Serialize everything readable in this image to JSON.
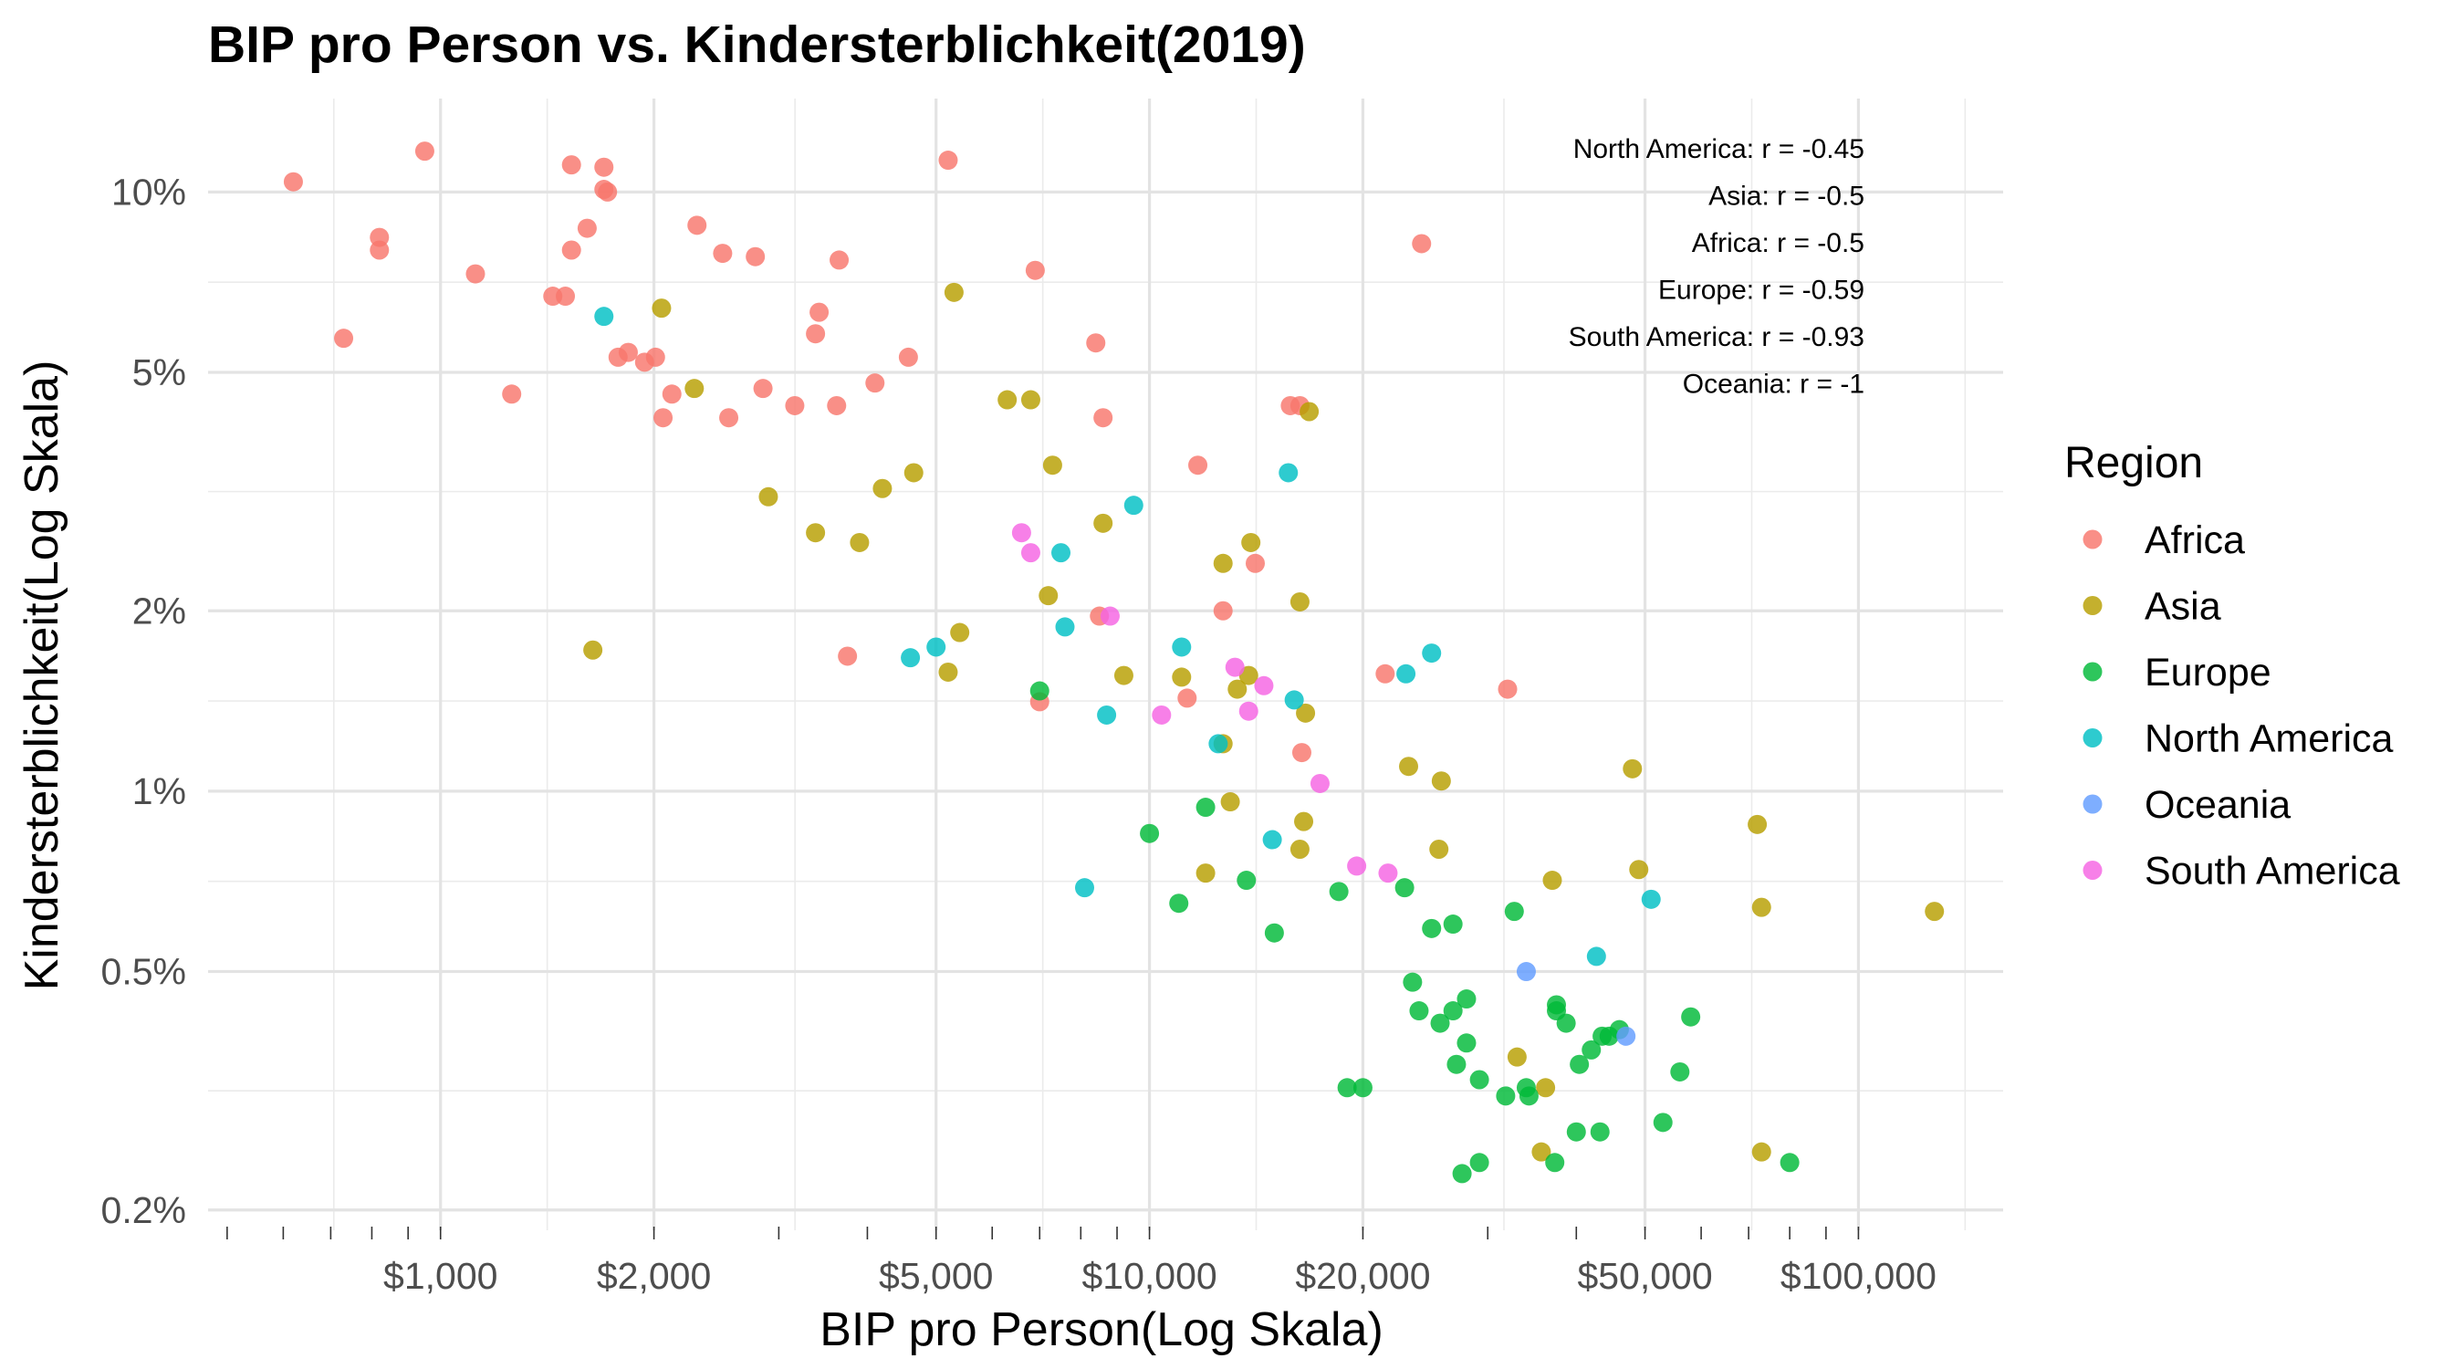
{
  "chart_data": {
    "type": "scatter",
    "title": "BIP pro Person vs. Kindersterblichkeit(2019)",
    "xlabel": "BIP pro Person(Log Skala)",
    "ylabel": "Kindersterblichkeit(Log Skala)",
    "x_scale": "log",
    "y_scale": "log",
    "xlim": [
      470,
      160000
    ],
    "ylim": [
      0.00185,
      0.1432
    ],
    "x_ticks": [
      {
        "value": 1000,
        "label": "$1,000"
      },
      {
        "value": 2000,
        "label": "$2,000"
      },
      {
        "value": 5000,
        "label": "$5,000"
      },
      {
        "value": 10000,
        "label": "$10,000"
      },
      {
        "value": 20000,
        "label": "$20,000"
      },
      {
        "value": 50000,
        "label": "$50,000"
      },
      {
        "value": 100000,
        "label": "$100,000"
      }
    ],
    "y_ticks": [
      {
        "value": 0.002,
        "label": "0.2%"
      },
      {
        "value": 0.005,
        "label": "0.5%"
      },
      {
        "value": 0.01,
        "label": "1%"
      },
      {
        "value": 0.02,
        "label": "2%"
      },
      {
        "value": 0.05,
        "label": "5%"
      },
      {
        "value": 0.1,
        "label": "10%"
      }
    ],
    "grid": true,
    "legend_title": "Region",
    "legend_position": "right",
    "annotations": [
      "North America: r = -0.45",
      "Asia: r = -0.5",
      "Africa: r = -0.5",
      "Europe: r = -0.59",
      "South America: r = -0.93",
      "Oceania: r = -1"
    ],
    "series": [
      {
        "name": "Africa",
        "color": "#F8766D",
        "points": [
          [
            620,
            0.104
          ],
          [
            950,
            0.117
          ],
          [
            1530,
            0.111
          ],
          [
            1700,
            0.11
          ],
          [
            1700,
            0.101
          ],
          [
            1720,
            0.1
          ],
          [
            5200,
            0.113
          ],
          [
            820,
            0.084
          ],
          [
            820,
            0.08
          ],
          [
            1610,
            0.087
          ],
          [
            2300,
            0.088
          ],
          [
            1530,
            0.08
          ],
          [
            2500,
            0.079
          ],
          [
            2780,
            0.078
          ],
          [
            3650,
            0.077
          ],
          [
            1120,
            0.073
          ],
          [
            6900,
            0.074
          ],
          [
            1440,
            0.067
          ],
          [
            1500,
            0.067
          ],
          [
            3420,
            0.063
          ],
          [
            3380,
            0.058
          ],
          [
            730,
            0.057
          ],
          [
            8400,
            0.056
          ],
          [
            1780,
            0.053
          ],
          [
            1840,
            0.054
          ],
          [
            1940,
            0.052
          ],
          [
            2010,
            0.053
          ],
          [
            4570,
            0.053
          ],
          [
            4100,
            0.048
          ],
          [
            1260,
            0.046
          ],
          [
            2060,
            0.042
          ],
          [
            2120,
            0.046
          ],
          [
            2550,
            0.042
          ],
          [
            2850,
            0.047
          ],
          [
            3160,
            0.044
          ],
          [
            3620,
            0.044
          ],
          [
            8600,
            0.042
          ],
          [
            15800,
            0.044
          ],
          [
            16300,
            0.044
          ],
          [
            11700,
            0.035
          ],
          [
            12700,
            0.02
          ],
          [
            14100,
            0.024
          ],
          [
            8500,
            0.0196
          ],
          [
            3750,
            0.0168
          ],
          [
            7000,
            0.0141
          ],
          [
            11300,
            0.0143
          ],
          [
            21500,
            0.0157
          ],
          [
            32000,
            0.0148
          ],
          [
            16400,
            0.0116
          ],
          [
            24200,
            0.082
          ]
        ]
      },
      {
        "name": "Asia",
        "color": "#B79F00",
        "points": [
          [
            5300,
            0.068
          ],
          [
            2050,
            0.064
          ],
          [
            2280,
            0.047
          ],
          [
            6300,
            0.045
          ],
          [
            6800,
            0.045
          ],
          [
            16800,
            0.043
          ],
          [
            7300,
            0.035
          ],
          [
            4650,
            0.034
          ],
          [
            4200,
            0.032
          ],
          [
            2900,
            0.031
          ],
          [
            8600,
            0.028
          ],
          [
            3380,
            0.027
          ],
          [
            3900,
            0.026
          ],
          [
            13900,
            0.026
          ],
          [
            12700,
            0.024
          ],
          [
            7200,
            0.0212
          ],
          [
            16300,
            0.0207
          ],
          [
            5400,
            0.0184
          ],
          [
            5200,
            0.0158
          ],
          [
            1640,
            0.0172
          ],
          [
            9200,
            0.0156
          ],
          [
            11100,
            0.0155
          ],
          [
            13300,
            0.0148
          ],
          [
            13800,
            0.0156
          ],
          [
            12700,
            0.012
          ],
          [
            16600,
            0.0135
          ],
          [
            23200,
            0.011
          ],
          [
            25800,
            0.0104
          ],
          [
            48000,
            0.0109
          ],
          [
            13000,
            0.0096
          ],
          [
            16500,
            0.0089
          ],
          [
            72000,
            0.0088
          ],
          [
            12000,
            0.0073
          ],
          [
            16300,
            0.008
          ],
          [
            25600,
            0.008
          ],
          [
            37000,
            0.0071
          ],
          [
            49000,
            0.0074
          ],
          [
            73000,
            0.0064
          ],
          [
            128000,
            0.0063
          ],
          [
            33000,
            0.0036
          ],
          [
            36200,
            0.0032
          ],
          [
            35700,
            0.0025
          ],
          [
            73000,
            0.0025
          ]
        ]
      },
      {
        "name": "Europe",
        "color": "#00BA38",
        "points": [
          [
            7000,
            0.0147
          ],
          [
            10000,
            0.0085
          ],
          [
            12000,
            0.0094
          ],
          [
            11000,
            0.0065
          ],
          [
            13700,
            0.0071
          ],
          [
            15000,
            0.0058
          ],
          [
            18500,
            0.0068
          ],
          [
            22900,
            0.0069
          ],
          [
            25000,
            0.0059
          ],
          [
            26800,
            0.006
          ],
          [
            32700,
            0.0063
          ],
          [
            23500,
            0.0048
          ],
          [
            28000,
            0.0045
          ],
          [
            24000,
            0.0043
          ],
          [
            25700,
            0.0041
          ],
          [
            26800,
            0.0043
          ],
          [
            28000,
            0.0038
          ],
          [
            27100,
            0.0035
          ],
          [
            29200,
            0.0033
          ],
          [
            31800,
            0.0031
          ],
          [
            34000,
            0.0032
          ],
          [
            34300,
            0.0031
          ],
          [
            37500,
            0.0044
          ],
          [
            37500,
            0.0043
          ],
          [
            38700,
            0.0041
          ],
          [
            40400,
            0.0035
          ],
          [
            42000,
            0.0037
          ],
          [
            43500,
            0.0039
          ],
          [
            44500,
            0.0039
          ],
          [
            46000,
            0.004
          ],
          [
            53000,
            0.0028
          ],
          [
            56000,
            0.0034
          ],
          [
            58000,
            0.0042
          ],
          [
            19000,
            0.0032
          ],
          [
            20000,
            0.0032
          ],
          [
            40000,
            0.0027
          ],
          [
            43200,
            0.0027
          ],
          [
            27600,
            0.0023
          ],
          [
            29200,
            0.0024
          ],
          [
            37300,
            0.0024
          ],
          [
            80000,
            0.0024
          ]
        ]
      },
      {
        "name": "North America",
        "color": "#00BFC4",
        "points": [
          [
            1700,
            0.062
          ],
          [
            15700,
            0.034
          ],
          [
            9500,
            0.03
          ],
          [
            7500,
            0.025
          ],
          [
            7600,
            0.0188
          ],
          [
            4600,
            0.0167
          ],
          [
            5000,
            0.0174
          ],
          [
            11100,
            0.0174
          ],
          [
            25000,
            0.017
          ],
          [
            23000,
            0.0157
          ],
          [
            16000,
            0.0142
          ],
          [
            8700,
            0.0134
          ],
          [
            12500,
            0.012
          ],
          [
            14900,
            0.0083
          ],
          [
            8100,
            0.0069
          ],
          [
            42700,
            0.0053
          ],
          [
            51000,
            0.0066
          ]
        ]
      },
      {
        "name": "Oceania",
        "color": "#619CFF",
        "points": [
          [
            34000,
            0.005
          ],
          [
            47000,
            0.0039
          ]
        ]
      },
      {
        "name": "South America",
        "color": "#F564E3",
        "points": [
          [
            6600,
            0.027
          ],
          [
            6800,
            0.025
          ],
          [
            8800,
            0.0196
          ],
          [
            13200,
            0.0161
          ],
          [
            14500,
            0.015
          ],
          [
            10400,
            0.0134
          ],
          [
            13800,
            0.0136
          ],
          [
            17400,
            0.0103
          ],
          [
            19600,
            0.0075
          ],
          [
            21700,
            0.0073
          ]
        ]
      }
    ]
  }
}
